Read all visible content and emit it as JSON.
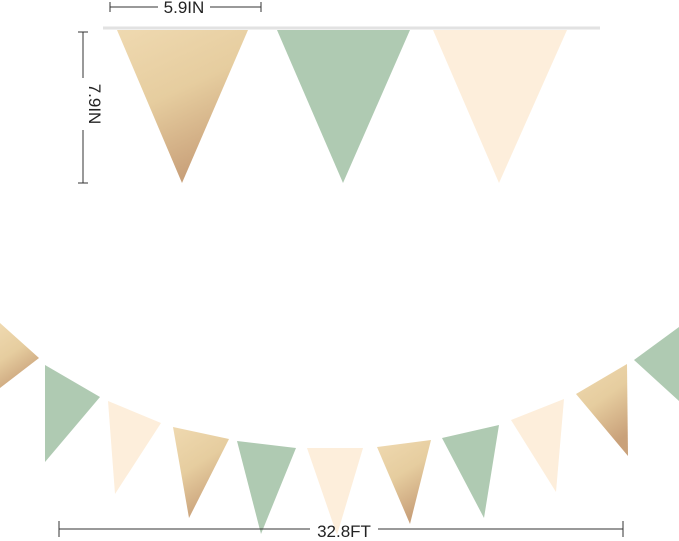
{
  "dimensions": {
    "flag_width": "5.9IN",
    "flag_height": "7.9IN",
    "total_length": "32.8FT"
  },
  "colors": {
    "gold": "#e3c79a",
    "sage_green": "#afcab2",
    "cream": "#fdeedb",
    "string": "#e2e2e2",
    "dimension_line": "#333333"
  },
  "top_flags": [
    "gold",
    "sage_green",
    "cream"
  ],
  "bottom_flags": [
    "gold",
    "sage_green",
    "cream",
    "gold",
    "sage_green",
    "cream",
    "gold",
    "sage_green",
    "cream",
    "gold",
    "sage_green"
  ]
}
